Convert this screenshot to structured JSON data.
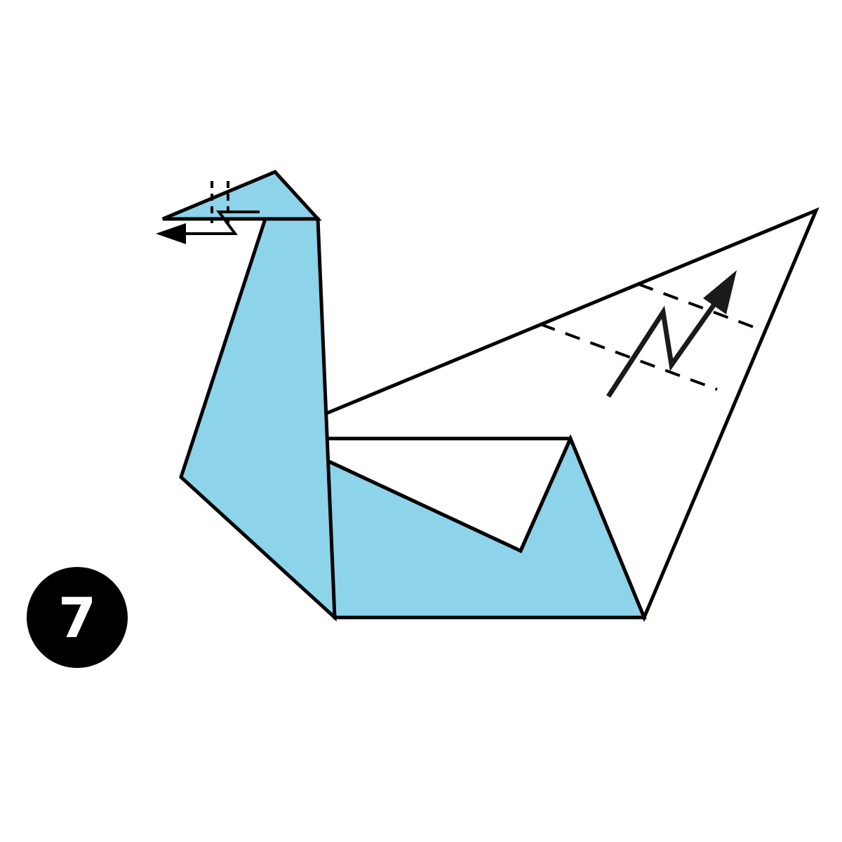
{
  "diagram": {
    "step_number": "7",
    "paper_color": "#8dd3ea",
    "reverse_color": "#ffffff",
    "line_color": "#000000",
    "badge_color": "#000000"
  }
}
